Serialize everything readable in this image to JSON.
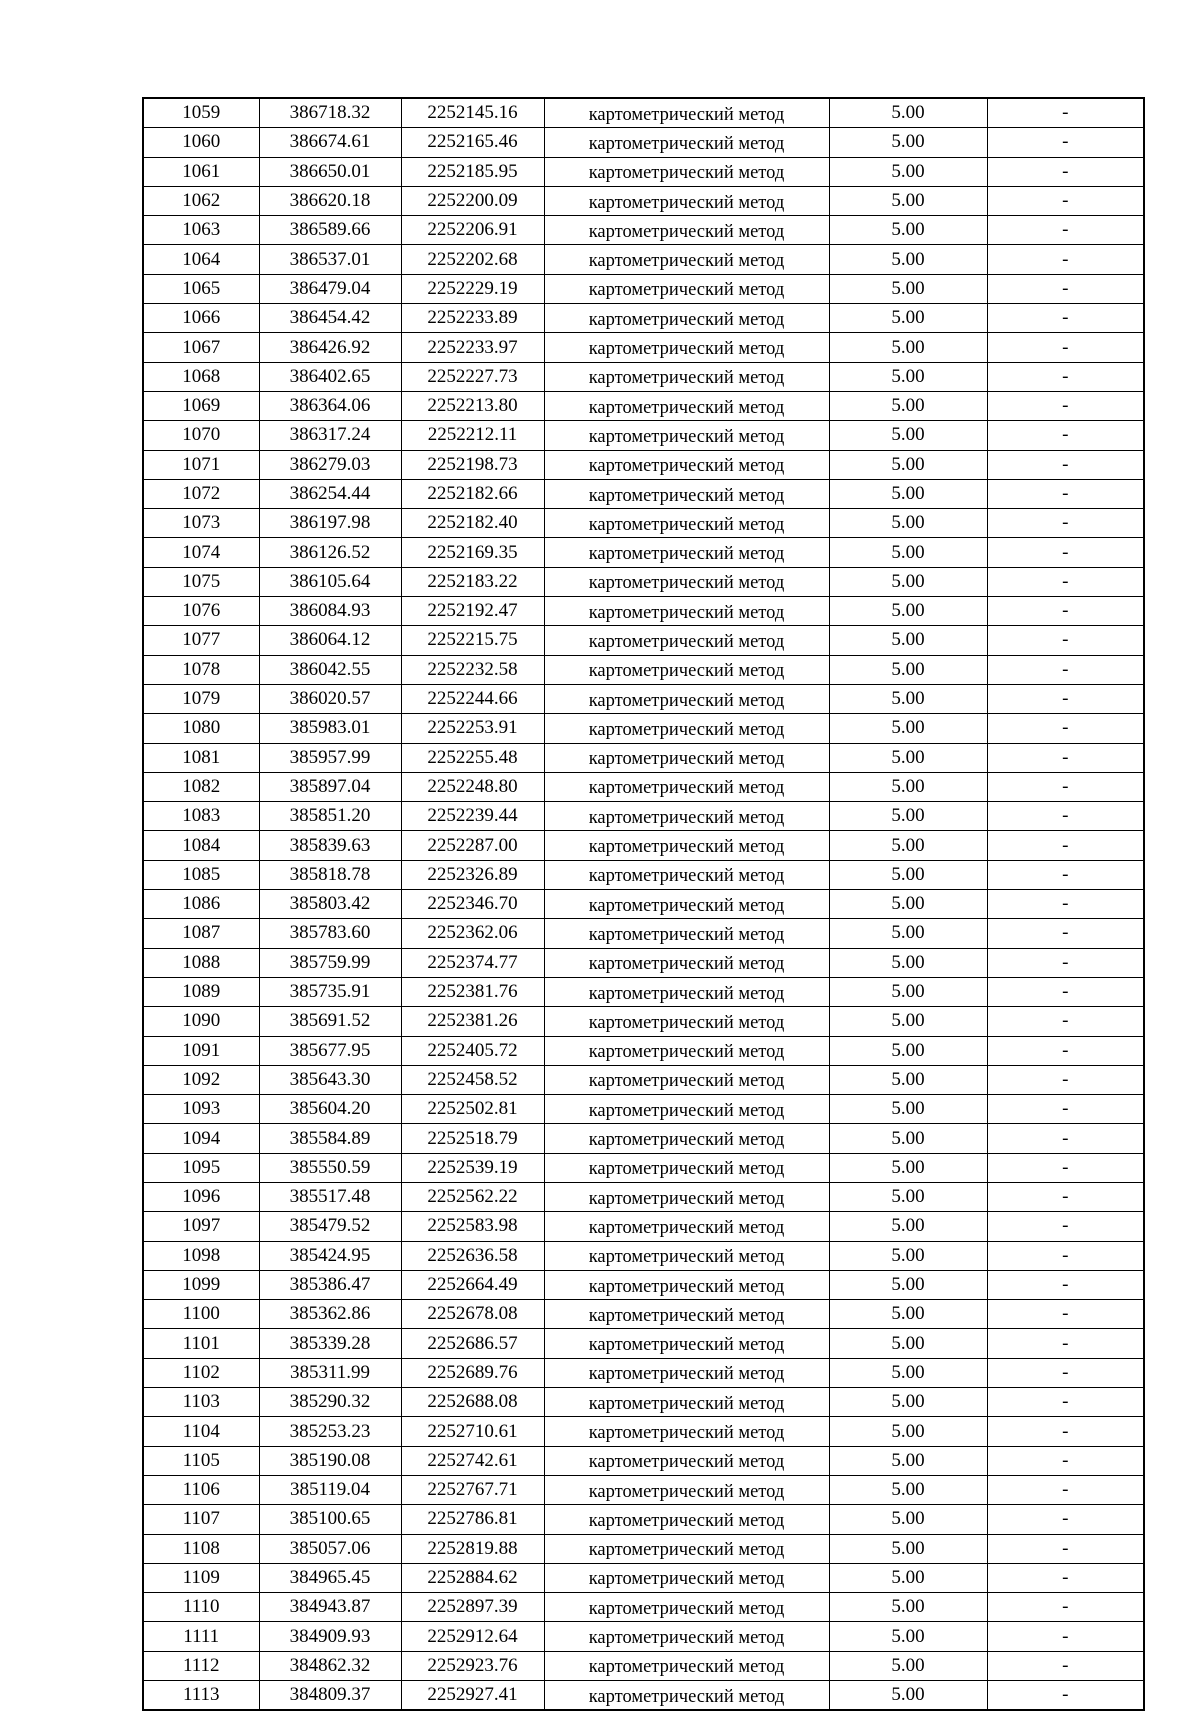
{
  "table": {
    "method": "картометрический метод",
    "accuracy": "5.00",
    "note": "-",
    "rows": [
      [
        "1059",
        "386718.32",
        "2252145.16"
      ],
      [
        "1060",
        "386674.61",
        "2252165.46"
      ],
      [
        "1061",
        "386650.01",
        "2252185.95"
      ],
      [
        "1062",
        "386620.18",
        "2252200.09"
      ],
      [
        "1063",
        "386589.66",
        "2252206.91"
      ],
      [
        "1064",
        "386537.01",
        "2252202.68"
      ],
      [
        "1065",
        "386479.04",
        "2252229.19"
      ],
      [
        "1066",
        "386454.42",
        "2252233.89"
      ],
      [
        "1067",
        "386426.92",
        "2252233.97"
      ],
      [
        "1068",
        "386402.65",
        "2252227.73"
      ],
      [
        "1069",
        "386364.06",
        "2252213.80"
      ],
      [
        "1070",
        "386317.24",
        "2252212.11"
      ],
      [
        "1071",
        "386279.03",
        "2252198.73"
      ],
      [
        "1072",
        "386254.44",
        "2252182.66"
      ],
      [
        "1073",
        "386197.98",
        "2252182.40"
      ],
      [
        "1074",
        "386126.52",
        "2252169.35"
      ],
      [
        "1075",
        "386105.64",
        "2252183.22"
      ],
      [
        "1076",
        "386084.93",
        "2252192.47"
      ],
      [
        "1077",
        "386064.12",
        "2252215.75"
      ],
      [
        "1078",
        "386042.55",
        "2252232.58"
      ],
      [
        "1079",
        "386020.57",
        "2252244.66"
      ],
      [
        "1080",
        "385983.01",
        "2252253.91"
      ],
      [
        "1081",
        "385957.99",
        "2252255.48"
      ],
      [
        "1082",
        "385897.04",
        "2252248.80"
      ],
      [
        "1083",
        "385851.20",
        "2252239.44"
      ],
      [
        "1084",
        "385839.63",
        "2252287.00"
      ],
      [
        "1085",
        "385818.78",
        "2252326.89"
      ],
      [
        "1086",
        "385803.42",
        "2252346.70"
      ],
      [
        "1087",
        "385783.60",
        "2252362.06"
      ],
      [
        "1088",
        "385759.99",
        "2252374.77"
      ],
      [
        "1089",
        "385735.91",
        "2252381.76"
      ],
      [
        "1090",
        "385691.52",
        "2252381.26"
      ],
      [
        "1091",
        "385677.95",
        "2252405.72"
      ],
      [
        "1092",
        "385643.30",
        "2252458.52"
      ],
      [
        "1093",
        "385604.20",
        "2252502.81"
      ],
      [
        "1094",
        "385584.89",
        "2252518.79"
      ],
      [
        "1095",
        "385550.59",
        "2252539.19"
      ],
      [
        "1096",
        "385517.48",
        "2252562.22"
      ],
      [
        "1097",
        "385479.52",
        "2252583.98"
      ],
      [
        "1098",
        "385424.95",
        "2252636.58"
      ],
      [
        "1099",
        "385386.47",
        "2252664.49"
      ],
      [
        "1100",
        "385362.86",
        "2252678.08"
      ],
      [
        "1101",
        "385339.28",
        "2252686.57"
      ],
      [
        "1102",
        "385311.99",
        "2252689.76"
      ],
      [
        "1103",
        "385290.32",
        "2252688.08"
      ],
      [
        "1104",
        "385253.23",
        "2252710.61"
      ],
      [
        "1105",
        "385190.08",
        "2252742.61"
      ],
      [
        "1106",
        "385119.04",
        "2252767.71"
      ],
      [
        "1107",
        "385100.65",
        "2252786.81"
      ],
      [
        "1108",
        "385057.06",
        "2252819.88"
      ],
      [
        "1109",
        "384965.45",
        "2252884.62"
      ],
      [
        "1110",
        "384943.87",
        "2252897.39"
      ],
      [
        "1111",
        "384909.93",
        "2252912.64"
      ],
      [
        "1112",
        "384862.32",
        "2252923.76"
      ],
      [
        "1113",
        "384809.37",
        "2252927.41"
      ]
    ]
  }
}
